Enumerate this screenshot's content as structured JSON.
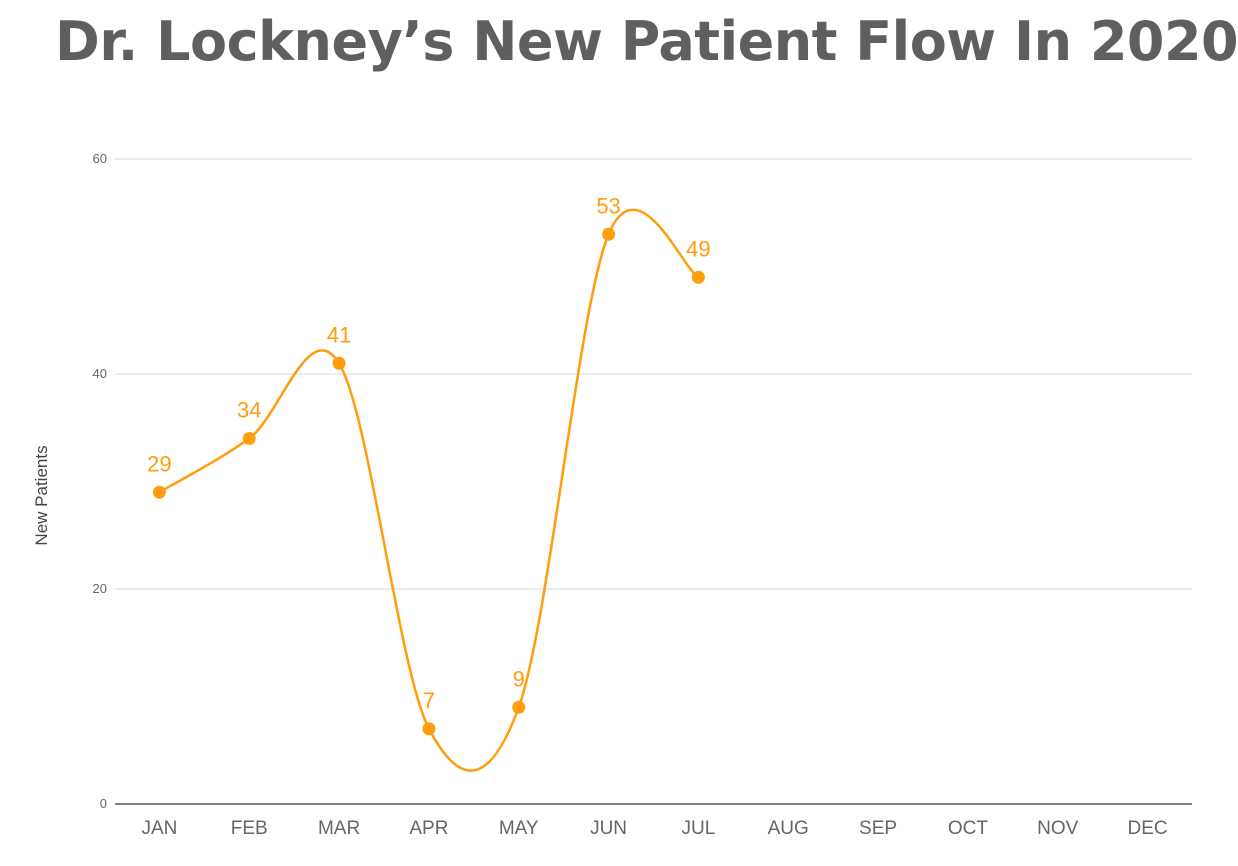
{
  "title": "Dr. Lockney’s New Patient Flow In 2020",
  "chart_data": {
    "type": "line",
    "title": "Dr. Lockney’s New Patient Flow In 2020",
    "xlabel": "",
    "ylabel": "New Patients",
    "categories": [
      "JAN",
      "FEB",
      "MAR",
      "APR",
      "MAY",
      "JUN",
      "JUL",
      "AUG",
      "SEP",
      "OCT",
      "NOV",
      "DEC"
    ],
    "series": [
      {
        "values": [
          29,
          34,
          41,
          7,
          9,
          53,
          49,
          null,
          null,
          null,
          null,
          null
        ],
        "color": "#ff9d0c"
      }
    ],
    "data_labels": [
      "29",
      "34",
      "41",
      "7",
      "9",
      "53",
      "49"
    ],
    "ylim": [
      0,
      60
    ],
    "yticks": [
      0,
      20,
      40,
      60
    ],
    "ytick_labels": [
      "0",
      "20",
      "40",
      "60"
    ],
    "grid": true,
    "smooth": true,
    "legend": "none"
  }
}
